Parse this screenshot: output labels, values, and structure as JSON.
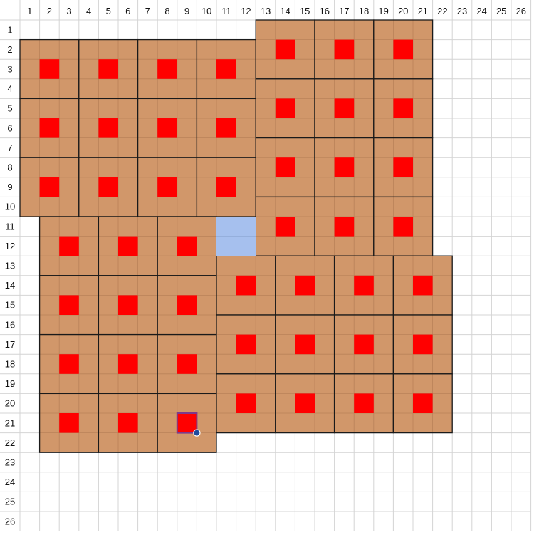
{
  "grid": {
    "columns": 26,
    "rows": 26,
    "column_labels": [
      "1",
      "2",
      "3",
      "4",
      "5",
      "6",
      "7",
      "8",
      "9",
      "10",
      "11",
      "12",
      "13",
      "14",
      "15",
      "16",
      "17",
      "18",
      "19",
      "20",
      "21",
      "22",
      "23",
      "24",
      "25",
      "26"
    ],
    "row_labels": [
      "1",
      "2",
      "3",
      "4",
      "5",
      "6",
      "7",
      "8",
      "9",
      "10",
      "11",
      "12",
      "13",
      "14",
      "15",
      "16",
      "17",
      "18",
      "19",
      "20",
      "21",
      "22",
      "23",
      "24",
      "25",
      "26"
    ]
  },
  "colors": {
    "background": "#ffffff",
    "grid_line": "#d4d4d4",
    "tile_fill": "#d1976a",
    "tile_inner_line": "#b98259",
    "block_border": "#1a1a1a",
    "center_mark": "#ff0000",
    "highlight_fill": "#a6c0ee",
    "selection_outline": "#7b3a8c",
    "selection_handle": "#1f4a9c",
    "label_text": "#111111"
  },
  "blocks": [
    {
      "col": 1,
      "row": 2
    },
    {
      "col": 4,
      "row": 2
    },
    {
      "col": 7,
      "row": 2
    },
    {
      "col": 10,
      "row": 2
    },
    {
      "col": 1,
      "row": 5
    },
    {
      "col": 4,
      "row": 5
    },
    {
      "col": 7,
      "row": 5
    },
    {
      "col": 10,
      "row": 5
    },
    {
      "col": 1,
      "row": 8
    },
    {
      "col": 4,
      "row": 8
    },
    {
      "col": 7,
      "row": 8
    },
    {
      "col": 10,
      "row": 8
    },
    {
      "col": 13,
      "row": 1
    },
    {
      "col": 16,
      "row": 1
    },
    {
      "col": 19,
      "row": 1
    },
    {
      "col": 13,
      "row": 4
    },
    {
      "col": 16,
      "row": 4
    },
    {
      "col": 19,
      "row": 4
    },
    {
      "col": 13,
      "row": 7
    },
    {
      "col": 16,
      "row": 7
    },
    {
      "col": 19,
      "row": 7
    },
    {
      "col": 13,
      "row": 10
    },
    {
      "col": 16,
      "row": 10
    },
    {
      "col": 19,
      "row": 10
    },
    {
      "col": 2,
      "row": 11
    },
    {
      "col": 5,
      "row": 11
    },
    {
      "col": 8,
      "row": 11
    },
    {
      "col": 2,
      "row": 14
    },
    {
      "col": 5,
      "row": 14
    },
    {
      "col": 8,
      "row": 14
    },
    {
      "col": 2,
      "row": 17
    },
    {
      "col": 5,
      "row": 17
    },
    {
      "col": 8,
      "row": 17
    },
    {
      "col": 2,
      "row": 20
    },
    {
      "col": 5,
      "row": 20
    },
    {
      "col": 8,
      "row": 20
    },
    {
      "col": 11,
      "row": 13
    },
    {
      "col": 14,
      "row": 13
    },
    {
      "col": 17,
      "row": 13
    },
    {
      "col": 20,
      "row": 13
    },
    {
      "col": 11,
      "row": 16
    },
    {
      "col": 14,
      "row": 16
    },
    {
      "col": 17,
      "row": 16
    },
    {
      "col": 20,
      "row": 16
    },
    {
      "col": 11,
      "row": 19
    },
    {
      "col": 14,
      "row": 19
    },
    {
      "col": 17,
      "row": 19
    },
    {
      "col": 20,
      "row": 19
    }
  ],
  "highlight": {
    "col": 11,
    "row": 11,
    "cols": 2,
    "rows": 2
  },
  "selection": {
    "col": 9,
    "row": 21
  }
}
